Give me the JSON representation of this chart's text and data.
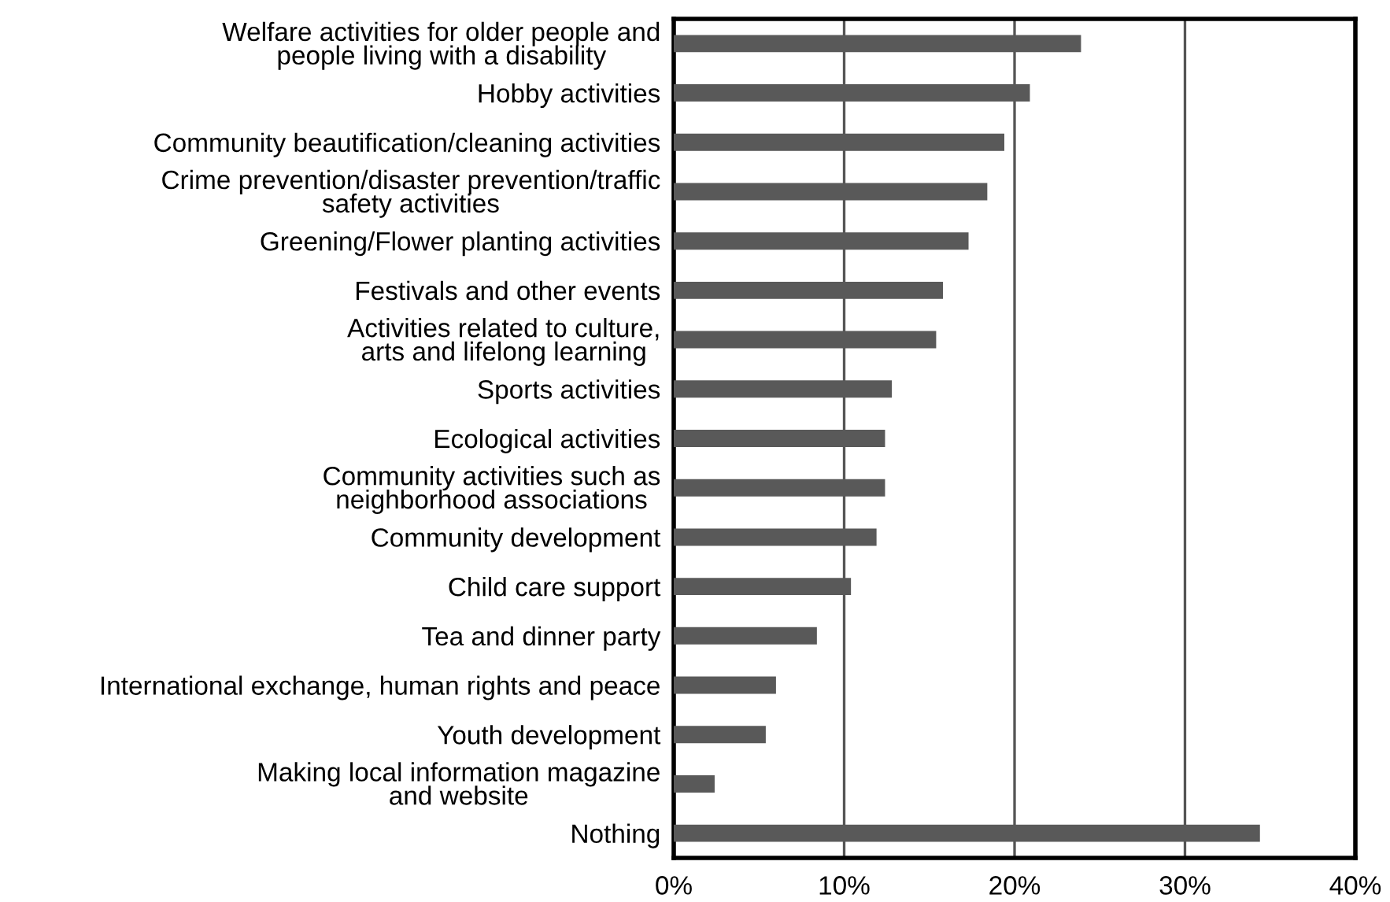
{
  "chart_data": {
    "type": "bar",
    "orientation": "horizontal",
    "categories": [
      "Welfare activities for older people and\npeople living with a disability",
      "Hobby activities",
      "Community beautification/cleaning activities",
      "Crime prevention/disaster prevention/traffic\nsafety activities",
      "Greening/Flower planting activities",
      "Festivals and other events",
      "Activities related to culture,\narts and lifelong learning",
      "Sports activities",
      "Ecological activities",
      "Community activities such as\nneighborhood associations",
      "Community development",
      "Child care support",
      "Tea and dinner party",
      "International exchange, human rights and peace",
      "Youth development",
      "Making local information magazine\nand website",
      "Nothing"
    ],
    "values": [
      23.9,
      20.9,
      19.4,
      18.4,
      17.3,
      15.8,
      15.4,
      12.8,
      12.4,
      12.4,
      11.9,
      10.4,
      8.4,
      6.0,
      5.4,
      2.4,
      34.4
    ],
    "color": "#595959",
    "xlim": [
      0,
      40
    ],
    "xticks": [
      {
        "value": 0,
        "label": "0%"
      },
      {
        "value": 10,
        "label": "10%"
      },
      {
        "value": 20,
        "label": "20%"
      },
      {
        "value": 30,
        "label": "30%"
      },
      {
        "value": 40,
        "label": "40%"
      }
    ],
    "grid": "x"
  }
}
